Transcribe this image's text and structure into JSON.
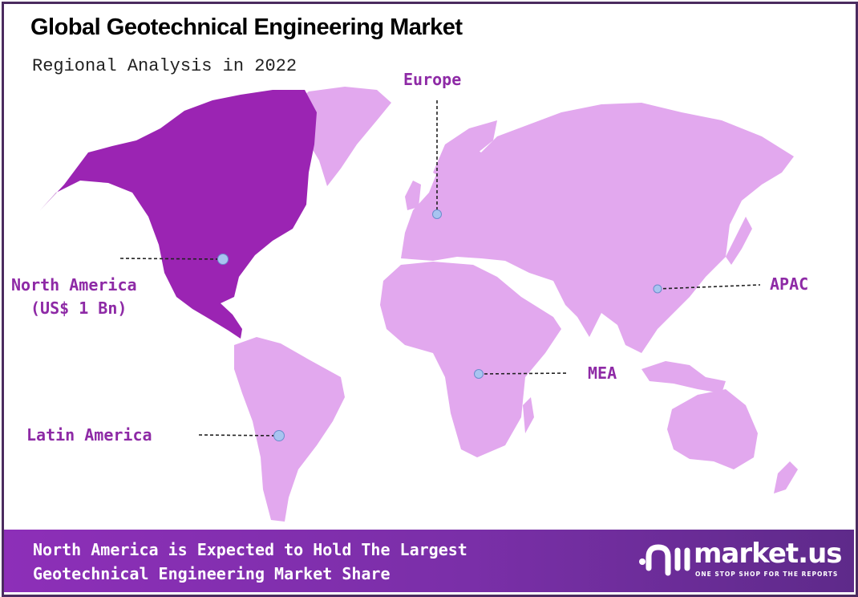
{
  "header": {
    "title": "Global Geotechnical Engineering Market",
    "subtitle": "Regional Analysis in 2022"
  },
  "map": {
    "highlight_color": "#9b24b3",
    "region_color": "#e2a8ee",
    "label_color": "#8e2aa6",
    "marker_color": "#a8c4f0",
    "regions": [
      {
        "name": "North America",
        "value": "(US$ 1 Bn)",
        "highlighted": true
      },
      {
        "name": "Europe",
        "highlighted": false
      },
      {
        "name": "APAC",
        "highlighted": false
      },
      {
        "name": "MEA",
        "highlighted": false
      },
      {
        "name": "Latin America",
        "highlighted": false
      }
    ]
  },
  "footer": {
    "line1": "North America is Expected to Hold The Largest",
    "line2": "Geotechnical Engineering Market Share",
    "logo": {
      "word": "market.us",
      "tagline": "ONE STOP SHOP FOR THE REPORTS"
    }
  }
}
